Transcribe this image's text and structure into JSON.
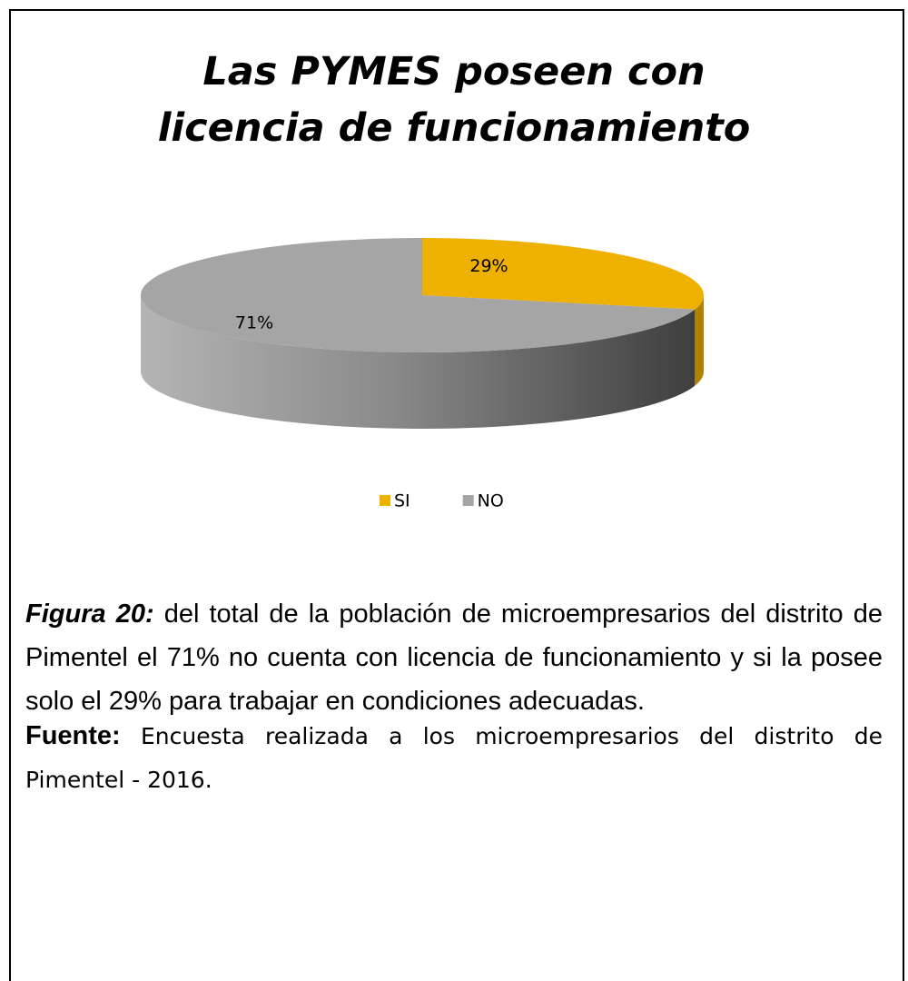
{
  "chart_data": {
    "type": "pie",
    "title": "Las PYMES poseen con licencia de funcionamiento",
    "categories": [
      "SI",
      "NO"
    ],
    "values": [
      29,
      71
    ],
    "value_labels": [
      "29%",
      "71%"
    ],
    "colors": [
      "#efb100",
      "#a5a5a5"
    ],
    "legend": "bottom"
  },
  "caption": {
    "label": "Figura 20:",
    "text": "del total de la población de microempresarios del distrito de Pimentel  el 71% no cuenta con  licencia de funcionamiento y si la posee solo el 29% para trabajar en condiciones adecuadas."
  },
  "source": {
    "label": "Fuente:",
    "text": "Encuesta realizada a los microempresarios del distrito de Pimentel - 2016."
  }
}
